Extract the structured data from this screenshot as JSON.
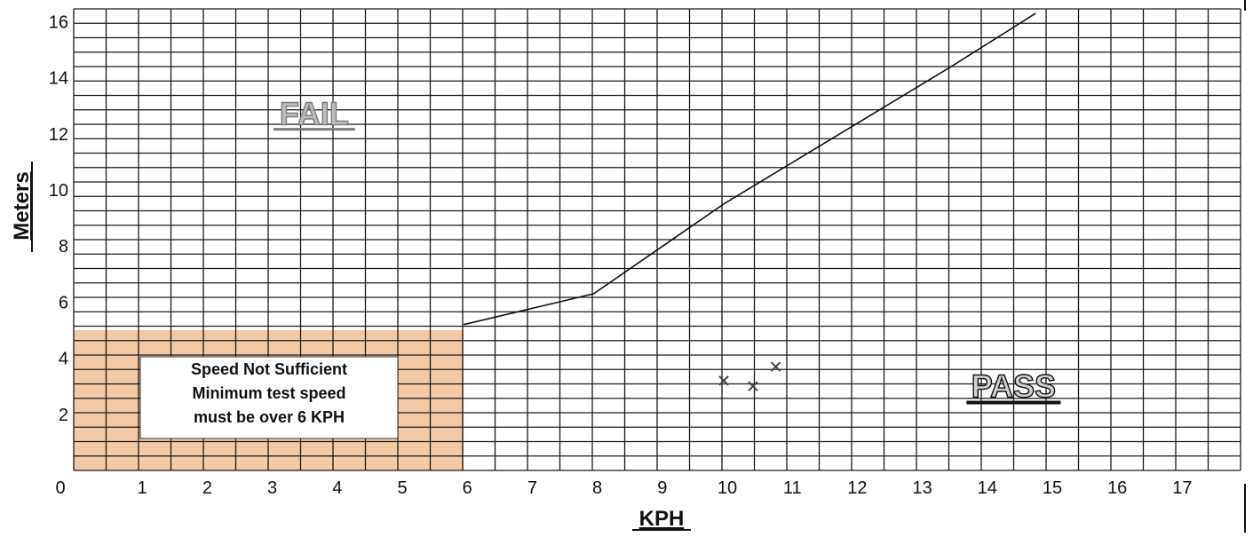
{
  "chart_data": {
    "type": "line",
    "xlabel": "KPH",
    "ylabel": "Meters",
    "xlim": [
      0,
      18
    ],
    "ylim": [
      0,
      16
    ],
    "x_ticks": [
      0,
      1,
      2,
      3,
      4,
      5,
      6,
      7,
      8,
      9,
      10,
      11,
      12,
      13,
      14,
      15,
      16,
      17
    ],
    "y_ticks": [
      2,
      4,
      6,
      8,
      10,
      12,
      14,
      16
    ],
    "grid": true,
    "series": [
      {
        "type": "line",
        "x": [
          6,
          8,
          10,
          12,
          13.5,
          14.8
        ],
        "y": [
          5.2,
          6.3,
          9.5,
          12.3,
          14.4,
          16.4
        ]
      },
      {
        "type": "scatter",
        "marker": "x",
        "x": [
          10.0,
          10.45,
          10.8
        ],
        "y": [
          3.2,
          3.0,
          3.7
        ]
      }
    ],
    "regions": [
      {
        "label": "FAIL",
        "x": 3.7,
        "y": 12.7
      },
      {
        "label": "PASS",
        "x": 14.5,
        "y": 2.8
      }
    ],
    "shaded_region": {
      "x": [
        0,
        6
      ],
      "y": [
        0,
        5
      ],
      "color": "#f3c9a6",
      "note_lines": [
        "Speed Not Sufficient",
        "Minimum test speed",
        "must be over 6 KPH"
      ]
    }
  }
}
